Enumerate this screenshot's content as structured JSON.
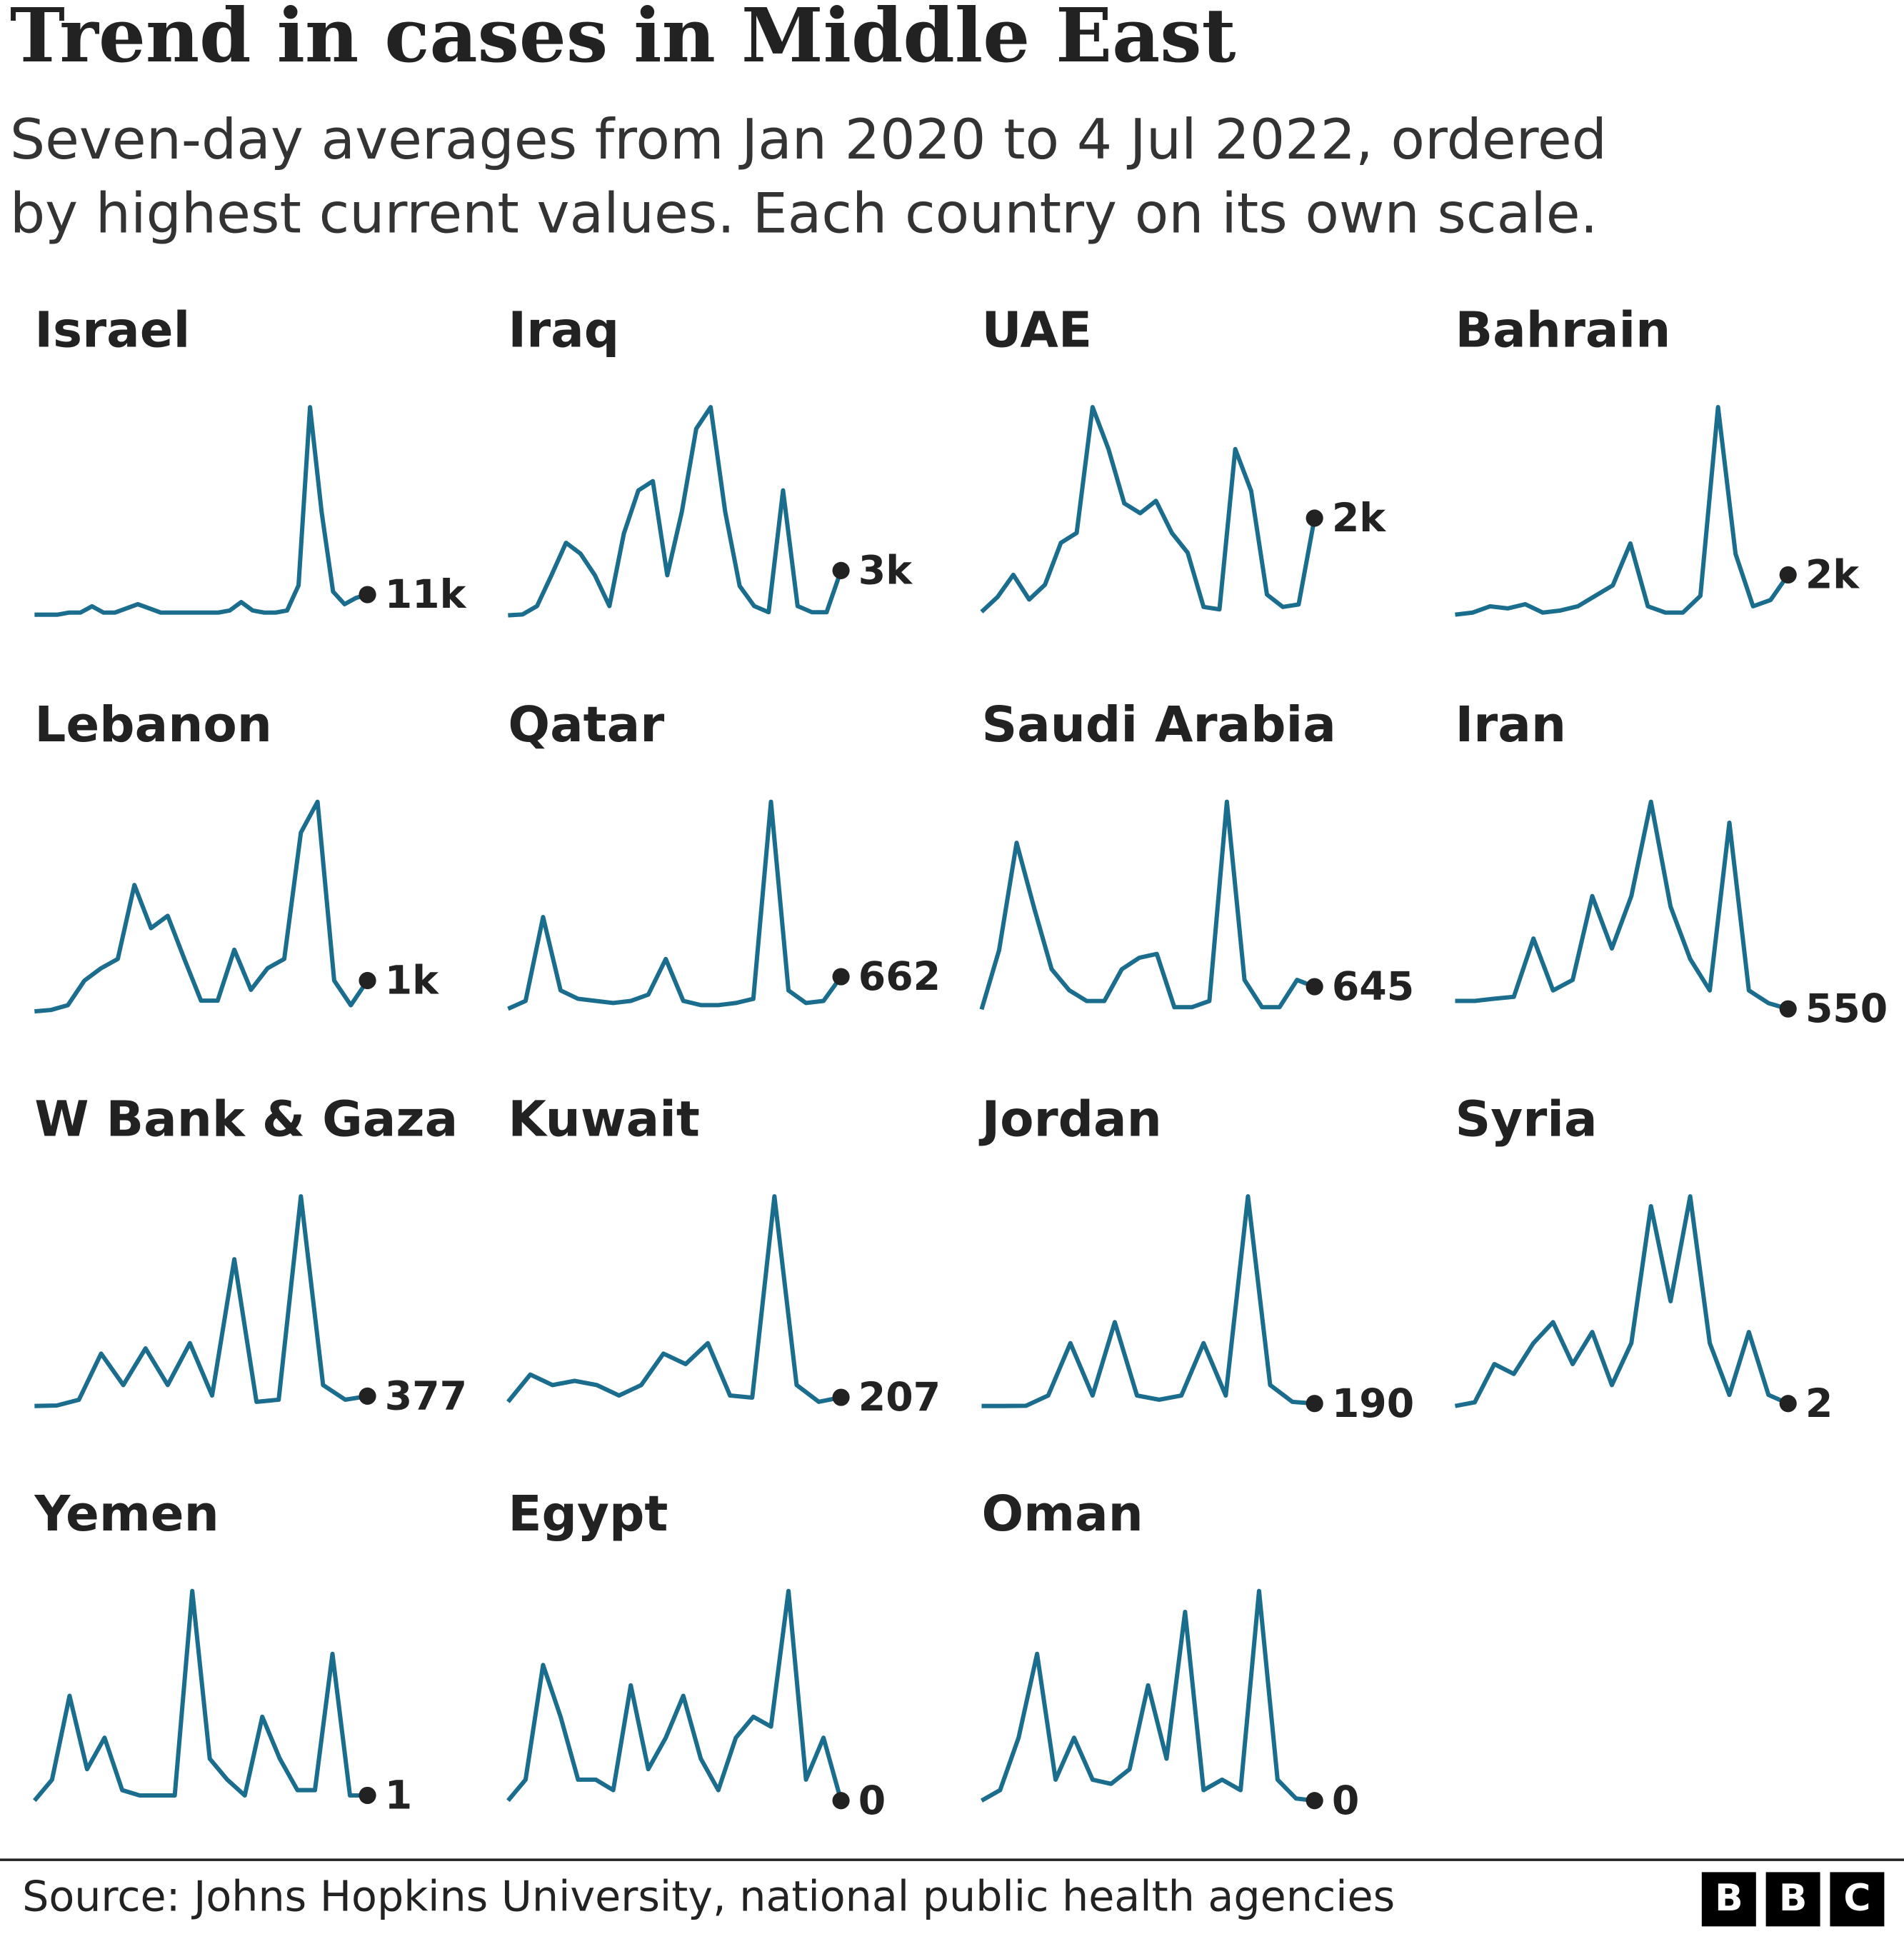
{
  "title": "Trend in cases in Middle East",
  "subtitle": [
    "Seven-day averages from Jan 2020 to 4 Jul 2022, ordered",
    "by highest current values. Each country on its own scale."
  ],
  "source": "Source: Johns Hopkins University, national public health agencies",
  "logo": [
    "B",
    "B",
    "C"
  ],
  "chart_data": [
    {
      "type": "line",
      "title": "Israel",
      "color": "#1b6d8e",
      "ylim": [
        0,
        104000
      ],
      "values": [
        1040,
        1040,
        1040,
        2080,
        2080,
        5200,
        2080,
        2080,
        4160,
        6240,
        4160,
        2080,
        2080,
        2080,
        2080,
        2080,
        2080,
        3120,
        7280,
        3120,
        2080,
        2080,
        3120,
        15600,
        104000,
        52000,
        12480,
        6240,
        9360,
        11000
      ],
      "value_labels": [
        null,
        null,
        null,
        null,
        null,
        null,
        null,
        null,
        null,
        null,
        null,
        null,
        null,
        null,
        null,
        null,
        null,
        null,
        null,
        null,
        null,
        null,
        null,
        null,
        null,
        null,
        null,
        null,
        null,
        "11k"
      ]
    },
    {
      "type": "line",
      "title": "Iraq",
      "color": "#1b6d8e",
      "ylim": [
        0,
        13600
      ],
      "values": [
        100,
        150,
        700,
        2700,
        4800,
        4100,
        2700,
        700,
        5400,
        8200,
        8800,
        2700,
        6800,
        12200,
        13600,
        6800,
        2000,
        700,
        300,
        8200,
        700,
        300,
        300,
        3000
      ],
      "value_labels": [
        null,
        null,
        null,
        null,
        null,
        null,
        null,
        null,
        null,
        null,
        null,
        null,
        null,
        null,
        null,
        null,
        null,
        null,
        null,
        null,
        null,
        null,
        null,
        "3k"
      ]
    },
    {
      "type": "line",
      "title": "UAE",
      "color": "#1b6d8e",
      "ylim": [
        0,
        4250
      ],
      "values": [
        100,
        400,
        850,
        350,
        650,
        1500,
        1700,
        4250,
        3400,
        2300,
        2100,
        2350,
        1700,
        1300,
        200,
        150,
        3400,
        2550,
        450,
        200,
        250,
        2000
      ],
      "value_labels": [
        null,
        null,
        null,
        null,
        null,
        null,
        null,
        null,
        null,
        null,
        null,
        null,
        null,
        null,
        null,
        null,
        null,
        null,
        null,
        null,
        null,
        "2k"
      ]
    },
    {
      "type": "line",
      "title": "Bahrain",
      "color": "#1b6d8e",
      "ylim": [
        0,
        10000
      ],
      "values": [
        100,
        200,
        500,
        400,
        600,
        200,
        300,
        500,
        1000,
        1500,
        3500,
        500,
        200,
        200,
        1000,
        10000,
        3000,
        500,
        800,
        2000
      ],
      "value_labels": [
        null,
        null,
        null,
        null,
        null,
        null,
        null,
        null,
        null,
        null,
        null,
        null,
        null,
        null,
        null,
        null,
        null,
        null,
        null,
        "2k"
      ]
    },
    {
      "type": "line",
      "title": "Lebanon",
      "color": "#1b6d8e",
      "ylim": [
        0,
        6800
      ],
      "values": [
        0,
        50,
        200,
        1000,
        1400,
        1700,
        4100,
        2700,
        3100,
        1700,
        350,
        350,
        2000,
        700,
        1400,
        1700,
        5800,
        6800,
        1000,
        200,
        1000
      ],
      "value_labels": [
        null,
        null,
        null,
        null,
        null,
        null,
        null,
        null,
        null,
        null,
        null,
        null,
        null,
        null,
        null,
        null,
        null,
        null,
        null,
        null,
        "1k"
      ]
    },
    {
      "type": "line",
      "title": "Qatar",
      "color": "#1b6d8e",
      "ylim": [
        0,
        4000
      ],
      "values": [
        50,
        200,
        1800,
        400,
        240,
        200,
        160,
        200,
        320,
        1000,
        200,
        120,
        120,
        160,
        240,
        4000,
        400,
        160,
        200,
        662
      ]
    },
    {
      "type": "line",
      "title": "Saudi Arabia",
      "color": "#1b6d8e",
      "ylim": [
        0,
        5470
      ],
      "values": [
        50,
        1600,
        4400,
        2700,
        1100,
        550,
        270,
        270,
        1100,
        1400,
        1500,
        110,
        110,
        270,
        5470,
        820,
        110,
        110,
        820,
        645
      ]
    },
    {
      "type": "line",
      "title": "Iran",
      "color": "#1b6d8e",
      "ylim": [
        0,
        46000
      ],
      "values": [
        2300,
        2300,
        2800,
        3200,
        16000,
        4600,
        6900,
        25300,
        13800,
        25300,
        46000,
        23000,
        11500,
        4600,
        41400,
        4600,
        1800,
        550
      ]
    },
    {
      "type": "line",
      "title": "W Bank & Gaza",
      "color": "#1b6d8e",
      "ylim": [
        0,
        8000
      ],
      "values": [
        0,
        20,
        240,
        2000,
        800,
        2200,
        800,
        2400,
        400,
        5600,
        160,
        240,
        8000,
        800,
        240,
        377
      ]
    },
    {
      "type": "line",
      "title": "Kuwait",
      "color": "#1b6d8e",
      "ylim": [
        0,
        5000
      ],
      "values": [
        100,
        750,
        500,
        600,
        500,
        250,
        500,
        1250,
        1000,
        1500,
        250,
        200,
        5000,
        500,
        100,
        207
      ]
    },
    {
      "type": "line",
      "title": "Jordan",
      "color": "#1b6d8e",
      "ylim": [
        0,
        16000
      ],
      "values": [
        0,
        0,
        20,
        800,
        4800,
        800,
        6400,
        800,
        480,
        800,
        4800,
        800,
        16000,
        1600,
        320,
        190
      ]
    },
    {
      "type": "line",
      "title": "Syria",
      "color": "#1b6d8e",
      "ylim": [
        0,
        170
      ],
      "values": [
        0,
        3,
        34,
        26,
        51,
        68,
        34,
        60,
        17,
        51,
        162,
        85,
        170,
        51,
        9,
        60,
        9,
        2
      ]
    },
    {
      "type": "line",
      "title": "Yemen",
      "color": "#1b6d8e",
      "ylim": [
        0,
        40
      ],
      "values": [
        0,
        4,
        20,
        6,
        12,
        2,
        1,
        1,
        1,
        40,
        8,
        4,
        1,
        16,
        8,
        2,
        2,
        28,
        1,
        1
      ]
    },
    {
      "type": "line",
      "title": "Egypt",
      "color": "#1b6d8e",
      "ylim": [
        0,
        1700
      ],
      "values": [
        0,
        170,
        1100,
        680,
        170,
        170,
        85,
        935,
        255,
        510,
        850,
        340,
        85,
        510,
        680,
        600,
        1700,
        170,
        510,
        0
      ]
    },
    {
      "type": "line",
      "title": "Oman",
      "color": "#1b6d8e",
      "ylim": [
        0,
        2000
      ],
      "values": [
        0,
        100,
        600,
        1400,
        200,
        600,
        200,
        160,
        300,
        1100,
        400,
        1800,
        100,
        200,
        100,
        2000,
        200,
        20,
        0
      ]
    }
  ]
}
